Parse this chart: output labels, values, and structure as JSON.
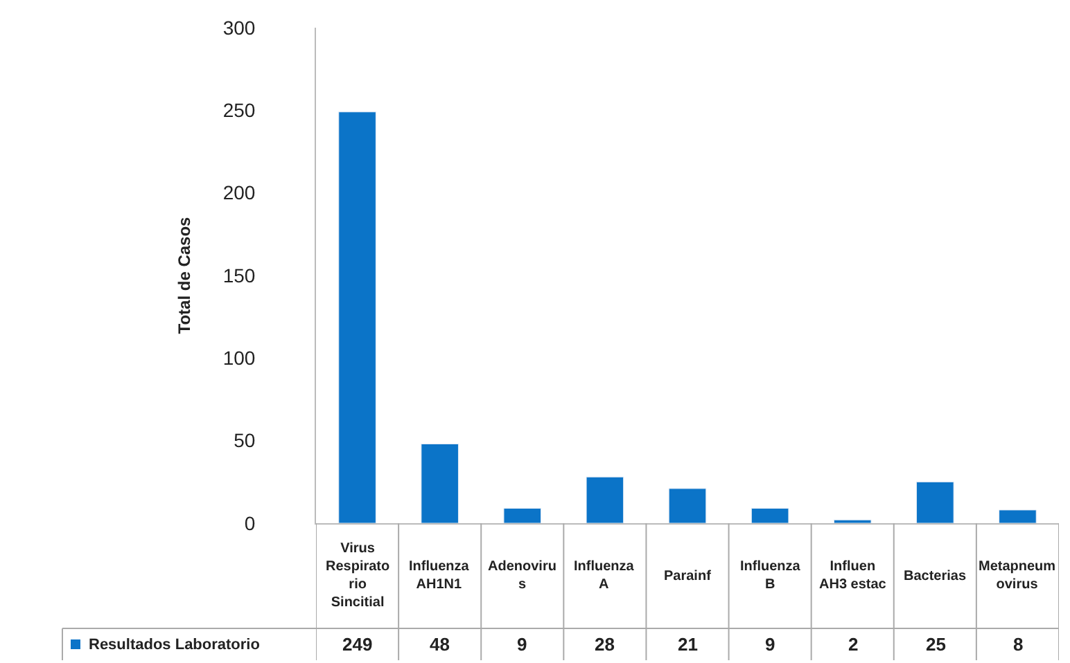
{
  "chart_data": {
    "type": "bar",
    "ylabel": "Total de Casos",
    "categories": [
      "Virus Respiratorio Sincitial",
      "Influenza AH1N1",
      "Adenovirus",
      "Influenza A",
      "Parainf",
      "Influenza B",
      "Influen AH3 estac",
      "Bacterias",
      "Metapneumovirus"
    ],
    "series": [
      {
        "name": "Resultados Laboratorio",
        "color": "#0b74c8",
        "values": [
          249,
          48,
          9,
          28,
          21,
          9,
          2,
          25,
          8
        ]
      }
    ],
    "ylim": [
      0,
      300
    ],
    "yticks": [
      0,
      50,
      100,
      150,
      200,
      250,
      300
    ],
    "data_labels": true
  }
}
